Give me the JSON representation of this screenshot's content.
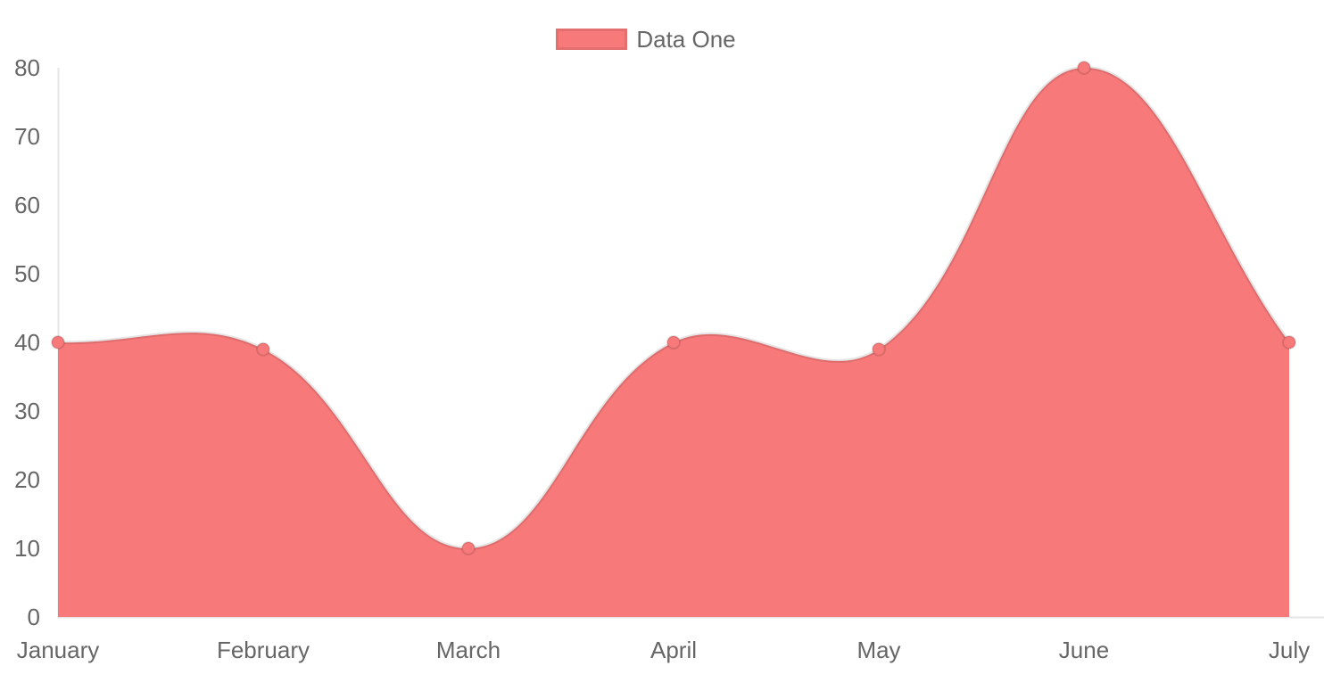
{
  "chart_data": {
    "type": "area",
    "title": "",
    "xlabel": "",
    "ylabel": "",
    "categories": [
      "January",
      "February",
      "March",
      "April",
      "May",
      "June",
      "July"
    ],
    "series": [
      {
        "name": "Data One",
        "values": [
          40,
          39,
          10,
          40,
          39,
          80,
          40
        ]
      }
    ],
    "ylim": [
      0,
      80
    ],
    "y_ticks": [
      0,
      10,
      20,
      30,
      40,
      50,
      60,
      70,
      80
    ],
    "legend_position": "top-center",
    "grid": false,
    "curve_tension": 0.4,
    "colors": {
      "fill": "#f87979",
      "line": "rgba(0,0,0,0.1)",
      "point_fill": "#f87979",
      "point_border": "rgba(0,0,0,0.12)",
      "axis": "rgba(0,0,0,0.1)",
      "tick_text": "#666666"
    }
  },
  "legend": {
    "items": [
      {
        "label": "Data One",
        "swatch_color": "#f87979"
      }
    ]
  }
}
